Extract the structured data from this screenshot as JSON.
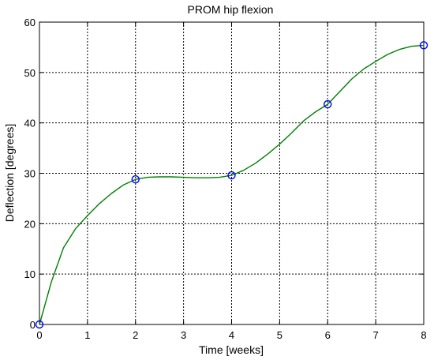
{
  "chart_data": {
    "type": "line",
    "title": "PROM hip flexion",
    "xlabel": "Time [weeks]",
    "ylabel": "Deflection [degrees]",
    "xlim": [
      0,
      8
    ],
    "ylim": [
      0,
      60
    ],
    "xticks": [
      0,
      1,
      2,
      3,
      4,
      5,
      6,
      7,
      8
    ],
    "yticks": [
      0,
      10,
      20,
      30,
      40,
      50,
      60
    ],
    "grid": true,
    "series": [
      {
        "kind": "curve",
        "color": "#008000",
        "x": [
          0,
          0.25,
          0.5,
          0.75,
          1,
          1.25,
          1.5,
          1.75,
          2,
          2.25,
          2.5,
          2.75,
          3,
          3.25,
          3.5,
          3.75,
          4,
          4.25,
          4.5,
          4.75,
          5,
          5.25,
          5.5,
          5.75,
          6,
          6.25,
          6.5,
          6.75,
          7,
          7.25,
          7.5,
          7.75,
          8
        ],
        "y": [
          0,
          8.5,
          15.2,
          19.0,
          21.6,
          24.0,
          26.0,
          27.7,
          28.8,
          29.2,
          29.3,
          29.3,
          29.2,
          29.1,
          29.1,
          29.2,
          29.6,
          30.6,
          32.0,
          33.8,
          35.8,
          38.0,
          40.4,
          42.2,
          43.7,
          46.2,
          48.7,
          50.7,
          52.2,
          53.6,
          54.6,
          55.2,
          55.4
        ]
      },
      {
        "kind": "markers",
        "marker": "circle",
        "color": "#0000ff",
        "x": [
          0,
          2,
          4,
          6,
          8
        ],
        "y": [
          0,
          28.8,
          29.6,
          43.7,
          55.4
        ]
      }
    ]
  }
}
